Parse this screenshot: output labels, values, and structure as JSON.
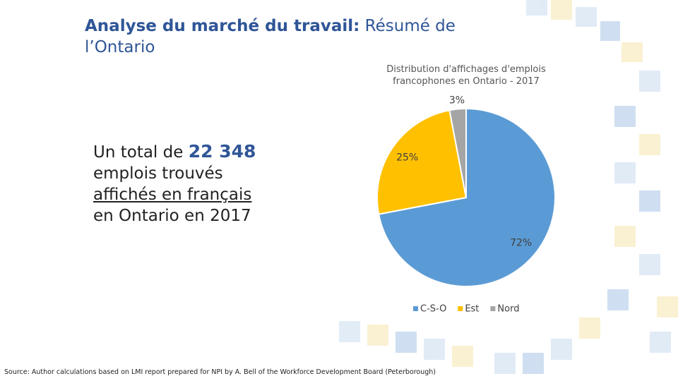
{
  "title_bold": "Analyse du marché du travail:",
  "title_rest": "Résumé de l’Ontario",
  "summary": [
    "Un total de",
    "22 348",
    "emplois trouvés",
    "affichés en français",
    "en Ontario en 2017"
  ],
  "source": "Source: Author calculations based on LMI report prepared for NPI by A. Bell of the Workforce Development Board (Peterborough)",
  "chart_data": {
    "type": "pie",
    "title": "Distribution d'affichages d'emplois francophones en Ontario - 2017",
    "categories": [
      "C-S-O",
      "Est",
      "Nord"
    ],
    "values": [
      72,
      25,
      3
    ],
    "value_labels": [
      "72%",
      "25%",
      "3%"
    ],
    "colors": [
      "#5b9bd5",
      "#ffc000",
      "#a5a5a5"
    ],
    "legend": "bottom"
  }
}
